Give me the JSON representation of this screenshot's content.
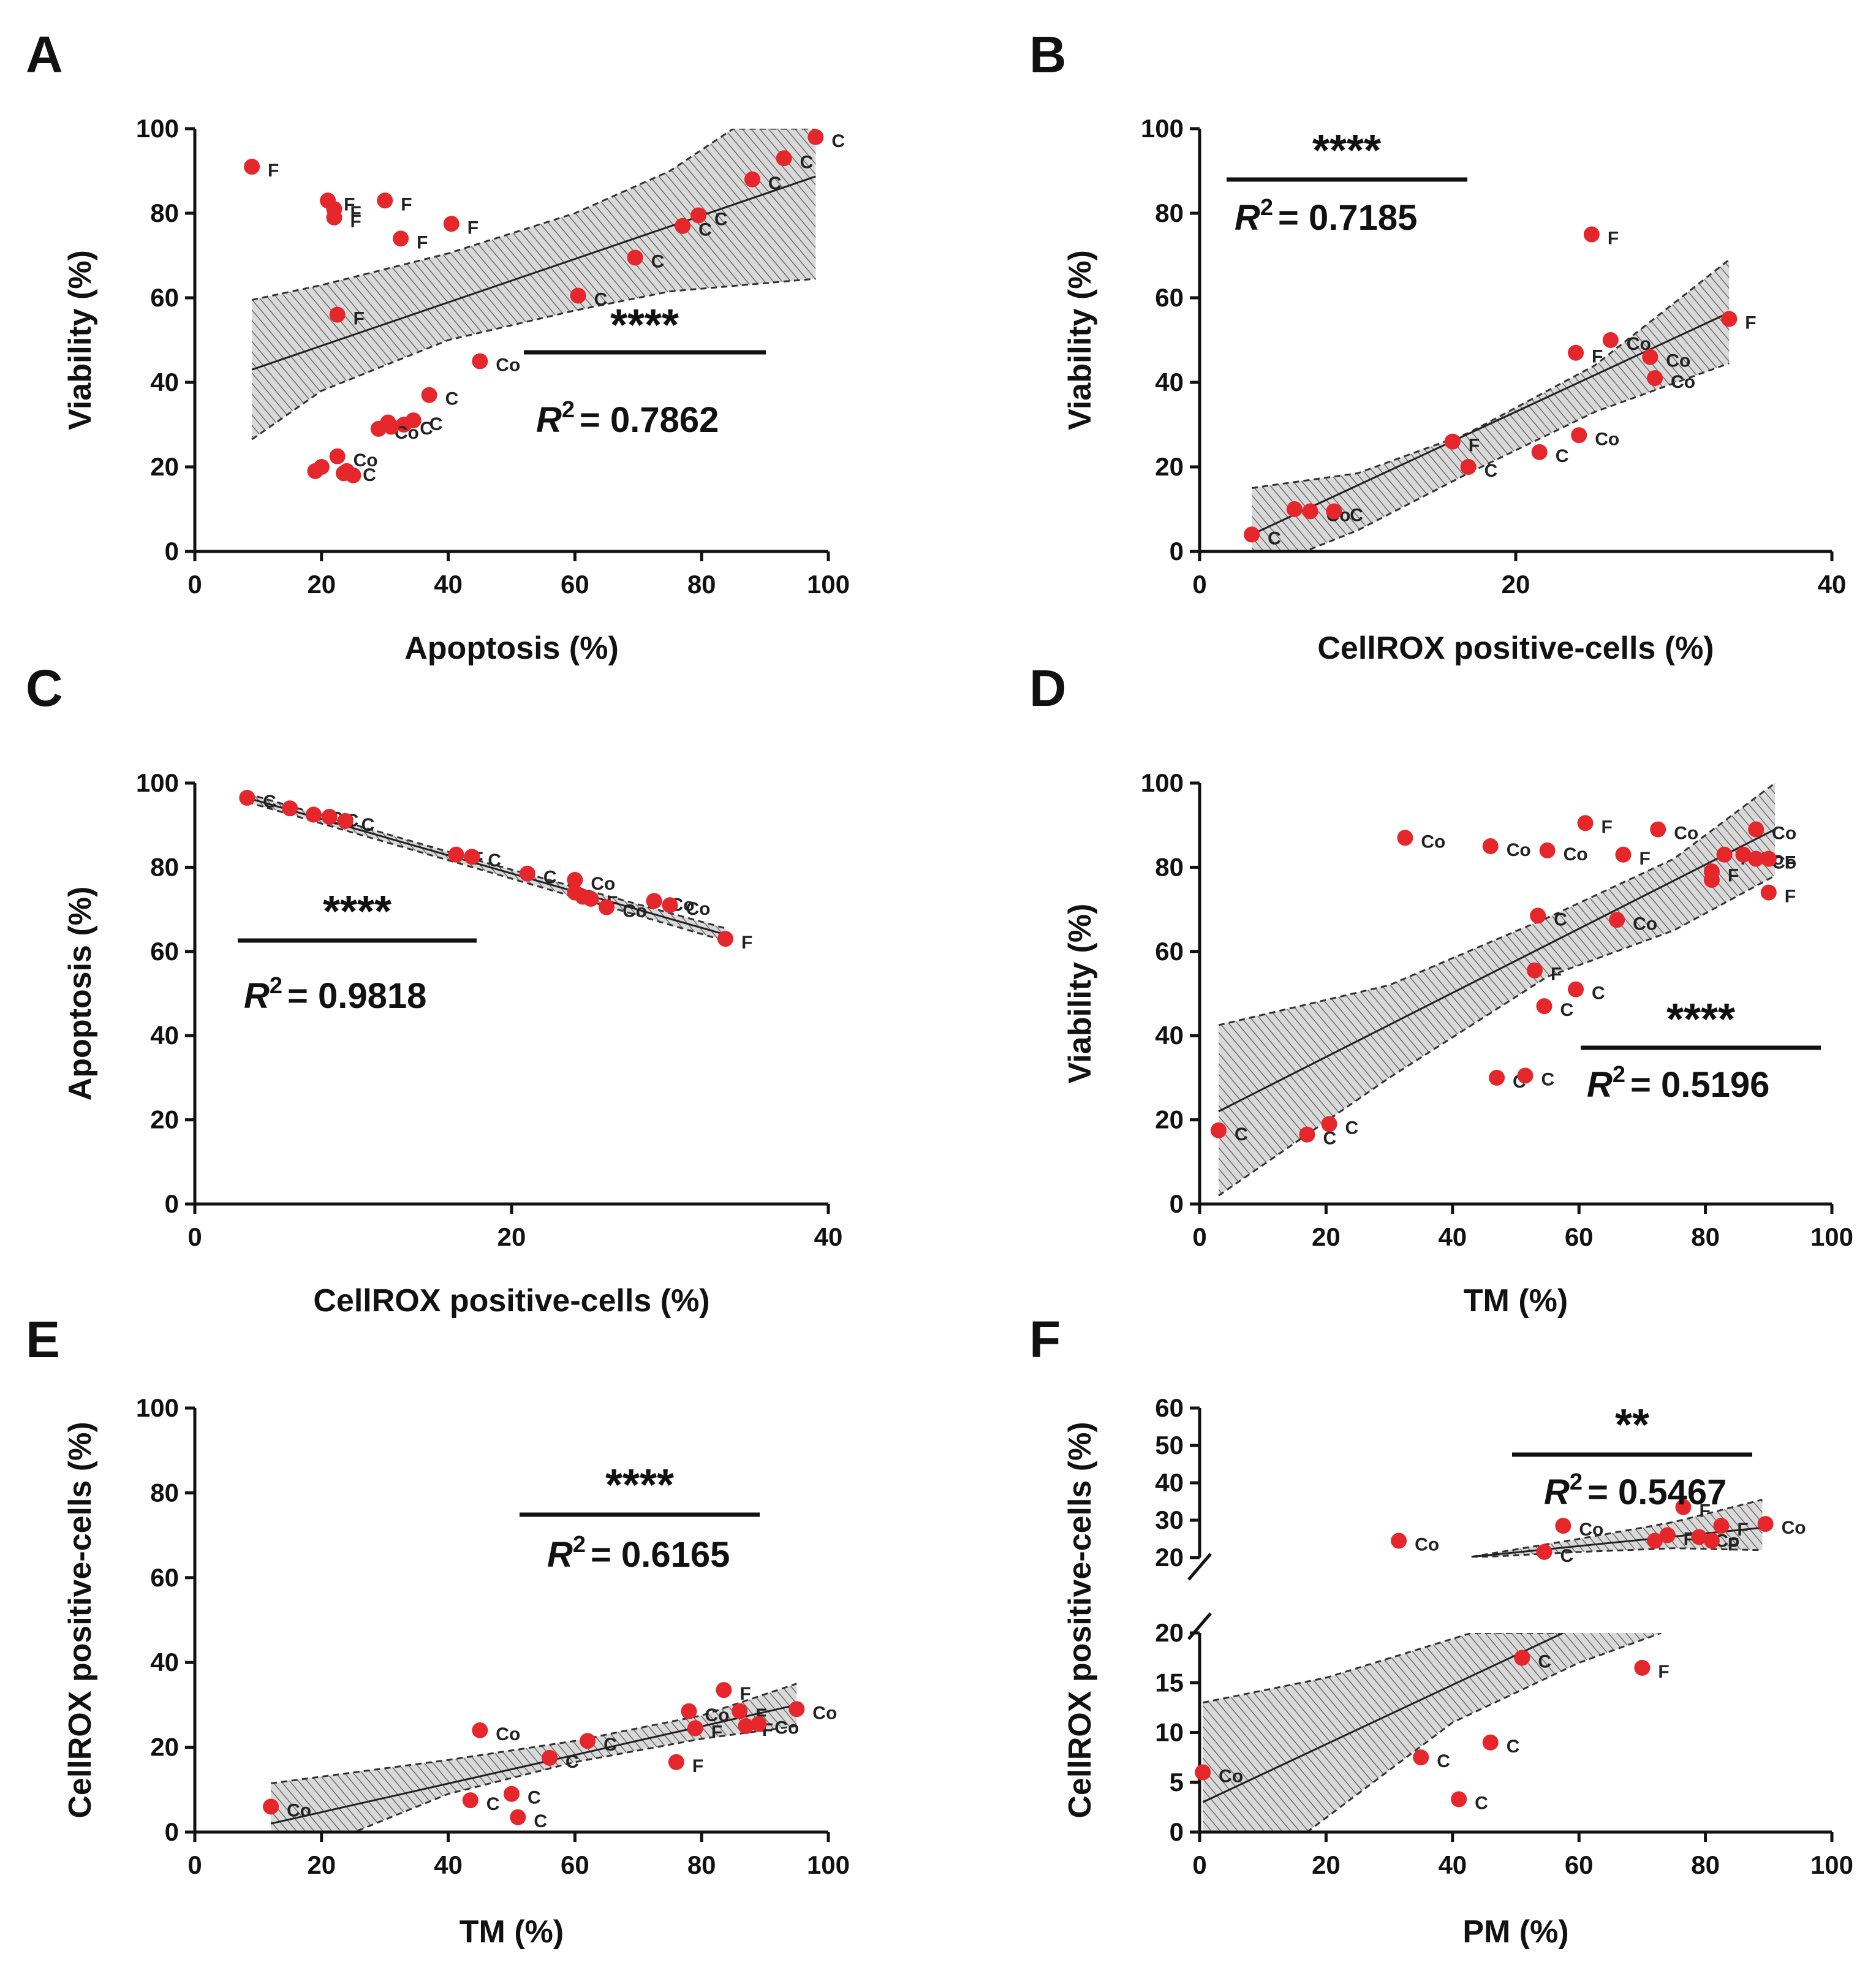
{
  "chart_data": [
    {
      "panel": "A",
      "type": "scatter",
      "xlabel": "Apoptosis (%)",
      "ylabel": "Viability (%)",
      "xlim": [
        0,
        100
      ],
      "ylim": [
        0,
        100
      ],
      "xticks": [
        "0",
        "20",
        "40",
        "60",
        "80",
        "100"
      ],
      "yticks": [
        "0",
        "20",
        "40",
        "60",
        "80",
        "100"
      ],
      "significance": "****",
      "r2_label": "R",
      "r2_value": "= 0.7862",
      "fit": {
        "x": [
          9,
          98
        ],
        "y": [
          43,
          88.7
        ]
      },
      "band_upper": [
        [
          9,
          59.5
        ],
        [
          20,
          63
        ],
        [
          40,
          70.5
        ],
        [
          60,
          80
        ],
        [
          75,
          90
        ],
        [
          85,
          100
        ],
        [
          98,
          100
        ]
      ],
      "band_lower": [
        [
          9,
          26.5
        ],
        [
          20,
          38
        ],
        [
          40,
          50
        ],
        [
          60,
          57
        ],
        [
          75,
          61.5
        ],
        [
          98,
          64.5
        ]
      ],
      "points": [
        {
          "x": 9,
          "y": 91,
          "label": "F"
        },
        {
          "x": 21,
          "y": 83,
          "label": "F"
        },
        {
          "x": 22,
          "y": 81,
          "label": "F"
        },
        {
          "x": 22,
          "y": 79,
          "label": "F"
        },
        {
          "x": 30,
          "y": 83,
          "label": "F"
        },
        {
          "x": 32.5,
          "y": 74,
          "label": "F"
        },
        {
          "x": 40.5,
          "y": 77.5,
          "label": "F"
        },
        {
          "x": 22.5,
          "y": 56,
          "label": "F"
        },
        {
          "x": 98,
          "y": 98,
          "label": "C"
        },
        {
          "x": 93,
          "y": 93,
          "label": "C"
        },
        {
          "x": 88,
          "y": 88,
          "label": "C"
        },
        {
          "x": 79.5,
          "y": 79.5,
          "label": "C"
        },
        {
          "x": 77,
          "y": 77,
          "label": "C"
        },
        {
          "x": 69.5,
          "y": 69.5,
          "label": "C"
        },
        {
          "x": 60.5,
          "y": 60.5,
          "label": "C"
        },
        {
          "x": 45,
          "y": 45,
          "label": "Co"
        },
        {
          "x": 37,
          "y": 37,
          "label": "C"
        },
        {
          "x": 34.5,
          "y": 31,
          "label": "C"
        },
        {
          "x": 33,
          "y": 30,
          "label": "C"
        },
        {
          "x": 29,
          "y": 29,
          "label": "Co"
        },
        {
          "x": 30.5,
          "y": 30.5,
          "label": ""
        },
        {
          "x": 31,
          "y": 29.5,
          "label": ""
        },
        {
          "x": 19,
          "y": 19,
          "label": ""
        },
        {
          "x": 20,
          "y": 20,
          "label": ""
        },
        {
          "x": 22.5,
          "y": 22.5,
          "label": "Co"
        },
        {
          "x": 24,
          "y": 19,
          "label": "C"
        },
        {
          "x": 23.5,
          "y": 18.5,
          "label": ""
        },
        {
          "x": 25,
          "y": 18,
          "label": ""
        }
      ]
    },
    {
      "panel": "B",
      "type": "scatter",
      "xlabel": "CellROX positive-cells (%)",
      "ylabel": "Viability (%)",
      "xlim": [
        0,
        40
      ],
      "ylim": [
        0,
        100
      ],
      "xticks": [
        "0",
        "20",
        "40"
      ],
      "yticks": [
        "0",
        "20",
        "40",
        "60",
        "80",
        "100"
      ],
      "significance": "****",
      "r2_label": "R",
      "r2_value": "= 0.7185",
      "fit": {
        "x": [
          3.3,
          33.5
        ],
        "y": [
          4,
          56.5
        ]
      },
      "band_upper": [
        [
          3.3,
          15
        ],
        [
          10,
          18.5
        ],
        [
          17,
          28
        ],
        [
          25,
          44
        ],
        [
          33.5,
          69
        ]
      ],
      "band_lower": [
        [
          3.3,
          -5
        ],
        [
          10,
          5
        ],
        [
          17,
          18.5
        ],
        [
          25,
          33
        ],
        [
          33.5,
          44.5
        ]
      ],
      "points": [
        {
          "x": 24.8,
          "y": 75,
          "label": "F"
        },
        {
          "x": 33.5,
          "y": 55,
          "label": "F"
        },
        {
          "x": 26,
          "y": 50,
          "label": "Co"
        },
        {
          "x": 23.8,
          "y": 47,
          "label": "F"
        },
        {
          "x": 28.5,
          "y": 46,
          "label": "Co"
        },
        {
          "x": 28.8,
          "y": 41,
          "label": "Co"
        },
        {
          "x": 16,
          "y": 26,
          "label": "F"
        },
        {
          "x": 24,
          "y": 27.5,
          "label": "Co"
        },
        {
          "x": 21.5,
          "y": 23.5,
          "label": "C"
        },
        {
          "x": 17,
          "y": 20,
          "label": "C"
        },
        {
          "x": 6,
          "y": 10,
          "label": ""
        },
        {
          "x": 7,
          "y": 9.5,
          "label": "Co"
        },
        {
          "x": 8.5,
          "y": 9.5,
          "label": "C"
        },
        {
          "x": 3.3,
          "y": 4,
          "label": "C"
        }
      ]
    },
    {
      "panel": "C",
      "type": "scatter",
      "xlabel": "CellROX positive-cells (%)",
      "ylabel": "Apoptosis (%)",
      "xlim": [
        0,
        40
      ],
      "ylim": [
        0,
        100
      ],
      "xticks": [
        "0",
        "20",
        "40"
      ],
      "yticks": [
        "0",
        "20",
        "40",
        "60",
        "80",
        "100"
      ],
      "significance": "****",
      "r2_label": "R",
      "r2_value": "= 0.9818",
      "fit": {
        "x": [
          3.3,
          33.5
        ],
        "y": [
          96.5,
          64
        ]
      },
      "band_upper": [
        [
          3.3,
          97.5
        ],
        [
          18,
          81.5
        ],
        [
          33.5,
          65.5
        ]
      ],
      "band_lower": [
        [
          3.3,
          95.5
        ],
        [
          18,
          79.5
        ],
        [
          33.5,
          62.5
        ]
      ],
      "points": [
        {
          "x": 3.3,
          "y": 96.5,
          "label": "C"
        },
        {
          "x": 6,
          "y": 94,
          "label": ""
        },
        {
          "x": 7.5,
          "y": 92.5,
          "label": "Co"
        },
        {
          "x": 8.5,
          "y": 92,
          "label": "C"
        },
        {
          "x": 9.5,
          "y": 91,
          "label": "C"
        },
        {
          "x": 16.5,
          "y": 83,
          "label": "F"
        },
        {
          "x": 17.5,
          "y": 82.5,
          "label": "C"
        },
        {
          "x": 21,
          "y": 78.5,
          "label": "C"
        },
        {
          "x": 24,
          "y": 77,
          "label": "Co"
        },
        {
          "x": 24,
          "y": 74,
          "label": ""
        },
        {
          "x": 24.5,
          "y": 73,
          "label": ""
        },
        {
          "x": 25,
          "y": 72.5,
          "label": "F"
        },
        {
          "x": 26,
          "y": 70.5,
          "label": "Co"
        },
        {
          "x": 29,
          "y": 72,
          "label": "Co"
        },
        {
          "x": 30,
          "y": 71,
          "label": "Co"
        },
        {
          "x": 33.5,
          "y": 63,
          "label": "F"
        }
      ]
    },
    {
      "panel": "D",
      "type": "scatter",
      "xlabel": "TM (%)",
      "ylabel": "Viability (%)",
      "xlim": [
        0,
        100
      ],
      "ylim": [
        0,
        100
      ],
      "xticks": [
        "0",
        "20",
        "40",
        "60",
        "80",
        "100"
      ],
      "yticks": [
        "0",
        "20",
        "40",
        "60",
        "80",
        "100"
      ],
      "significance": "****",
      "r2_label": "R",
      "r2_value": "= 0.5196",
      "fit": {
        "x": [
          3,
          91
        ],
        "y": [
          22,
          89
        ]
      },
      "band_upper": [
        [
          3,
          42.5
        ],
        [
          30,
          52
        ],
        [
          55,
          68
        ],
        [
          75,
          82
        ],
        [
          91,
          100
        ]
      ],
      "band_lower": [
        [
          3,
          2
        ],
        [
          30,
          30
        ],
        [
          55,
          54
        ],
        [
          75,
          65
        ],
        [
          91,
          78
        ]
      ],
      "points": [
        {
          "x": 32.5,
          "y": 87,
          "label": "Co"
        },
        {
          "x": 46,
          "y": 85,
          "label": "Co"
        },
        {
          "x": 55,
          "y": 84,
          "label": "Co"
        },
        {
          "x": 61,
          "y": 90.5,
          "label": "F"
        },
        {
          "x": 72.5,
          "y": 89,
          "label": "Co"
        },
        {
          "x": 67,
          "y": 83,
          "label": "F"
        },
        {
          "x": 53.5,
          "y": 68.5,
          "label": "C"
        },
        {
          "x": 66,
          "y": 67.5,
          "label": "Co"
        },
        {
          "x": 53,
          "y": 55.5,
          "label": "F"
        },
        {
          "x": 54.5,
          "y": 47,
          "label": "C"
        },
        {
          "x": 59.5,
          "y": 51,
          "label": "C"
        },
        {
          "x": 47,
          "y": 30,
          "label": "C"
        },
        {
          "x": 51.5,
          "y": 30.5,
          "label": "C"
        },
        {
          "x": 3,
          "y": 17.5,
          "label": "C"
        },
        {
          "x": 17,
          "y": 16.5,
          "label": "C"
        },
        {
          "x": 20.5,
          "y": 19,
          "label": "C"
        },
        {
          "x": 88,
          "y": 89,
          "label": "Co"
        },
        {
          "x": 83,
          "y": 83,
          "label": "F"
        },
        {
          "x": 86,
          "y": 83,
          "label": "Co"
        },
        {
          "x": 88,
          "y": 82,
          "label": "Co"
        },
        {
          "x": 90,
          "y": 82,
          "label": "F"
        },
        {
          "x": 81,
          "y": 79,
          "label": "F"
        },
        {
          "x": 81,
          "y": 77,
          "label": ""
        },
        {
          "x": 90,
          "y": 74,
          "label": "F"
        }
      ]
    },
    {
      "panel": "E",
      "type": "scatter",
      "xlabel": "TM (%)",
      "ylabel": "CellROX positive-cells (%)",
      "xlim": [
        0,
        100
      ],
      "ylim": [
        0,
        100
      ],
      "xticks": [
        "0",
        "20",
        "40",
        "60",
        "80",
        "100"
      ],
      "yticks": [
        "0",
        "20",
        "40",
        "60",
        "80",
        "100"
      ],
      "significance": "****",
      "r2_label": "R",
      "r2_value": "= 0.6165",
      "fit": {
        "x": [
          12,
          95
        ],
        "y": [
          2,
          30
        ]
      },
      "band_upper": [
        [
          12,
          11.5
        ],
        [
          40,
          17
        ],
        [
          60,
          21.5
        ],
        [
          80,
          27.5
        ],
        [
          95,
          35
        ]
      ],
      "band_lower": [
        [
          12,
          -8
        ],
        [
          40,
          9
        ],
        [
          60,
          16.5
        ],
        [
          80,
          22
        ],
        [
          95,
          25
        ]
      ],
      "points": [
        {
          "x": 12,
          "y": 6,
          "label": "Co"
        },
        {
          "x": 45,
          "y": 24,
          "label": "Co"
        },
        {
          "x": 43.5,
          "y": 7.5,
          "label": "C"
        },
        {
          "x": 50,
          "y": 9,
          "label": "C"
        },
        {
          "x": 51,
          "y": 3.5,
          "label": "C"
        },
        {
          "x": 56,
          "y": 17.5,
          "label": "C"
        },
        {
          "x": 62,
          "y": 21.5,
          "label": "C"
        },
        {
          "x": 76,
          "y": 16.5,
          "label": "F"
        },
        {
          "x": 78,
          "y": 28.5,
          "label": "Co"
        },
        {
          "x": 79,
          "y": 24.5,
          "label": "F"
        },
        {
          "x": 83.5,
          "y": 33.5,
          "label": "F"
        },
        {
          "x": 86,
          "y": 28.5,
          "label": "F"
        },
        {
          "x": 87,
          "y": 25,
          "label": "F"
        },
        {
          "x": 89,
          "y": 25.5,
          "label": "Co"
        },
        {
          "x": 95,
          "y": 29,
          "label": "Co"
        }
      ]
    },
    {
      "panel": "F",
      "type": "scatter",
      "xlabel": "PM (%)",
      "ylabel": "CellROX positive-cells (%)",
      "xlim": [
        0,
        100
      ],
      "ylim_lower": [
        0,
        20
      ],
      "ylim_upper": [
        20,
        60
      ],
      "xticks": [
        "0",
        "20",
        "40",
        "60",
        "80",
        "100"
      ],
      "yticks_lower": [
        "0",
        "5",
        "10",
        "15",
        "20"
      ],
      "yticks_upper": [
        "20",
        "30",
        "40",
        "50",
        "60"
      ],
      "significance": "**",
      "r2_label": "R",
      "r2_value": "= 0.5467",
      "fit_lower": {
        "x": [
          0.5,
          57.5
        ],
        "y": [
          3,
          20
        ]
      },
      "band_lower_upper": [
        [
          0.5,
          13
        ],
        [
          20,
          15.5
        ],
        [
          43,
          20
        ],
        [
          57,
          20
        ]
      ],
      "band_lower_lower": [
        [
          0.5,
          -7
        ],
        [
          17,
          0
        ],
        [
          40,
          11
        ],
        [
          60,
          17
        ],
        [
          73,
          20
        ]
      ],
      "fit_upper": {
        "x": [
          43,
          89
        ],
        "y": [
          20.2,
          28
        ]
      },
      "band_upper_upper": [
        [
          43,
          20.2
        ],
        [
          60,
          25
        ],
        [
          75,
          29.5
        ],
        [
          89,
          35.5
        ]
      ],
      "band_upper_lower": [
        [
          43,
          20
        ],
        [
          60,
          21.5
        ],
        [
          75,
          22.5
        ],
        [
          89,
          22
        ]
      ],
      "points_upper": [
        {
          "x": 31.5,
          "y": 24.5,
          "label": "Co"
        },
        {
          "x": 57.5,
          "y": 28.5,
          "label": "Co"
        },
        {
          "x": 54.5,
          "y": 21.5,
          "label": "C"
        },
        {
          "x": 76.5,
          "y": 33.5,
          "label": "F"
        },
        {
          "x": 74,
          "y": 26,
          "label": "F"
        },
        {
          "x": 72,
          "y": 24.5,
          "label": ""
        },
        {
          "x": 79,
          "y": 25.5,
          "label": "Co"
        },
        {
          "x": 82.5,
          "y": 28.5,
          "label": "F"
        },
        {
          "x": 81,
          "y": 24.5,
          "label": "F"
        },
        {
          "x": 89.5,
          "y": 29,
          "label": "Co"
        }
      ],
      "points_lower": [
        {
          "x": 0.5,
          "y": 6,
          "label": "Co"
        },
        {
          "x": 35,
          "y": 7.5,
          "label": "C"
        },
        {
          "x": 41,
          "y": 3.3,
          "label": "C"
        },
        {
          "x": 46,
          "y": 9,
          "label": "C"
        },
        {
          "x": 51,
          "y": 17.5,
          "label": "C"
        },
        {
          "x": 70,
          "y": 16.5,
          "label": "F"
        }
      ]
    }
  ],
  "panels": {
    "A": {
      "letter": "A"
    },
    "B": {
      "letter": "B"
    },
    "C": {
      "letter": "C"
    },
    "D": {
      "letter": "D"
    },
    "E": {
      "letter": "E"
    },
    "F": {
      "letter": "F"
    }
  },
  "colors": {
    "point": "#e5262b",
    "band": "#7a7a7a",
    "axis": "#111111"
  }
}
